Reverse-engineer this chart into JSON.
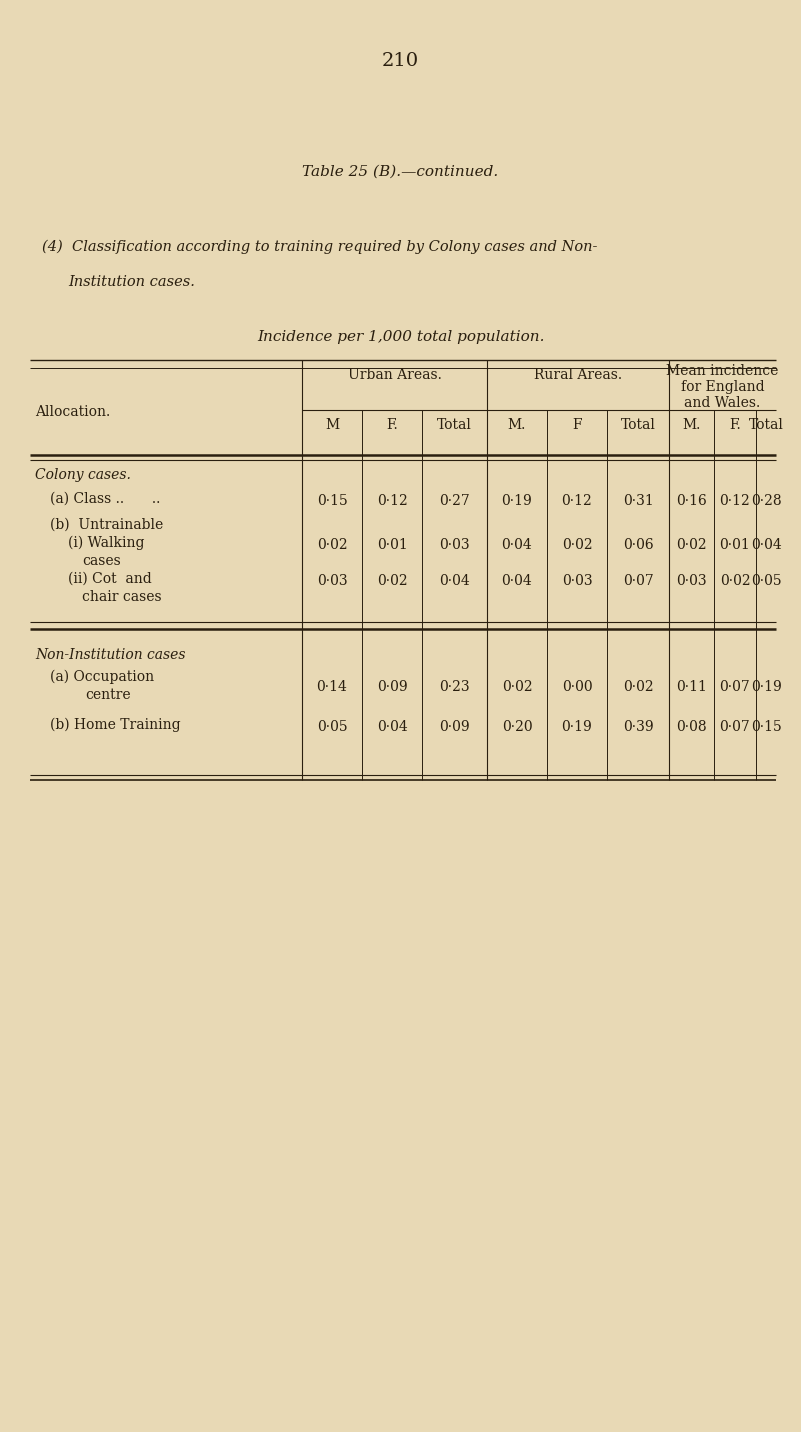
{
  "page_number": "210",
  "table_title": "Table 25 (B).—continued.",
  "subtitle1": "(4)  Classification according to training required by Colony cases and Non-",
  "subtitle2": "Institution cases.",
  "subtitle3": "Incidence per 1,000 total population.",
  "bg_color": "#e8d9b5",
  "text_color": "#2a1f0f",
  "sub_headers": [
    "M",
    "F.",
    "Total",
    "M.",
    "F",
    "Total",
    "M.",
    "F.",
    "Total"
  ],
  "sections": [
    {
      "section_title": "Colony cases.",
      "rows": [
        {
          "label": [
            "(a) Class ..  .."
          ],
          "values": [
            "0·15",
            "0·12",
            "0·27",
            "0·19",
            "0·12",
            "0·31",
            "0·16",
            "0·12",
            "0·28"
          ]
        },
        {
          "label": [
            "(b)  Untrainable",
            "      (i) Walking",
            "            cases"
          ],
          "values": [
            "0·02",
            "0·01",
            "0·03",
            "0·04",
            "0·02",
            "0·06",
            "0·02",
            "0·01",
            "0·04"
          ]
        },
        {
          "label": [
            "      (ii) Cot  and",
            "           chair cases"
          ],
          "values": [
            "0·03",
            "0·02",
            "0·04",
            "0·04",
            "0·03",
            "0·07",
            "0·03",
            "0·02",
            "0·05"
          ]
        }
      ]
    },
    {
      "section_title": "Non-Institution cases",
      "rows": [
        {
          "label": [
            "(a) Occupation",
            "            centre"
          ],
          "values": [
            "0·14",
            "0·09",
            "0·23",
            "0·02",
            "0·00",
            "0·02",
            "0·11",
            "0·07",
            "0·19"
          ]
        },
        {
          "label": [
            "(b) Home Training"
          ],
          "values": [
            "0·05",
            "0·04",
            "0·09",
            "0·20",
            "0·19",
            "0·39",
            "0·08",
            "0·07",
            "0·15"
          ]
        }
      ]
    }
  ]
}
